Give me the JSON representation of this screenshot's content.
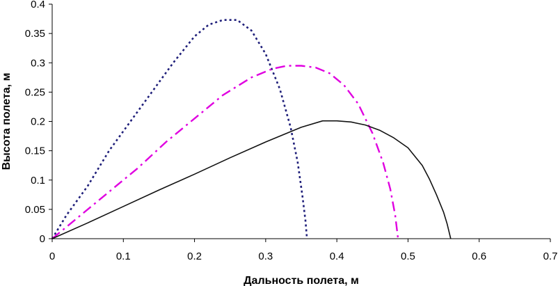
{
  "chart_data": {
    "type": "line",
    "title": "",
    "xlabel": "Дальность полета, м",
    "ylabel": "Высота полета, м",
    "xlim": [
      0,
      0.7
    ],
    "ylim": [
      0,
      0.4
    ],
    "xticks": [
      "0",
      "0.1",
      "0.2",
      "0.3",
      "0.4",
      "0.5",
      "0.6",
      "0.7"
    ],
    "yticks": [
      "0",
      "0.05",
      "0.1",
      "0.15",
      "0.2",
      "0.25",
      "0.3",
      "0.35",
      "0.4"
    ],
    "grid": false,
    "legend": "none",
    "series": [
      {
        "name": "navy-dotted",
        "color": "#1f1f7a",
        "style": "dotted",
        "x": [
          0,
          0.02,
          0.05,
          0.08,
          0.11,
          0.14,
          0.17,
          0.2,
          0.22,
          0.24,
          0.26,
          0.28,
          0.3,
          0.32,
          0.335,
          0.345,
          0.352,
          0.356,
          0.358
        ],
        "y": [
          0,
          0.04,
          0.09,
          0.15,
          0.2,
          0.25,
          0.3,
          0.345,
          0.365,
          0.373,
          0.373,
          0.355,
          0.315,
          0.255,
          0.19,
          0.13,
          0.07,
          0.03,
          0
        ]
      },
      {
        "name": "magenta-dashdot",
        "color": "#e000e0",
        "style": "dashdot",
        "x": [
          0,
          0.04,
          0.08,
          0.12,
          0.16,
          0.2,
          0.24,
          0.28,
          0.31,
          0.33,
          0.35,
          0.37,
          0.39,
          0.41,
          0.43,
          0.45,
          0.465,
          0.475,
          0.482,
          0.486
        ],
        "y": [
          0,
          0.04,
          0.08,
          0.12,
          0.165,
          0.205,
          0.245,
          0.275,
          0.29,
          0.295,
          0.295,
          0.292,
          0.282,
          0.262,
          0.23,
          0.18,
          0.13,
          0.085,
          0.04,
          0
        ]
      },
      {
        "name": "black-solid",
        "color": "#111111",
        "style": "solid",
        "x": [
          0,
          0.05,
          0.1,
          0.15,
          0.2,
          0.25,
          0.3,
          0.35,
          0.38,
          0.4,
          0.42,
          0.44,
          0.46,
          0.48,
          0.5,
          0.52,
          0.53,
          0.54,
          0.55,
          0.555,
          0.56
        ],
        "y": [
          0,
          0.027,
          0.055,
          0.083,
          0.11,
          0.138,
          0.165,
          0.19,
          0.201,
          0.201,
          0.199,
          0.194,
          0.185,
          0.172,
          0.155,
          0.125,
          0.102,
          0.075,
          0.045,
          0.025,
          0
        ]
      }
    ]
  }
}
